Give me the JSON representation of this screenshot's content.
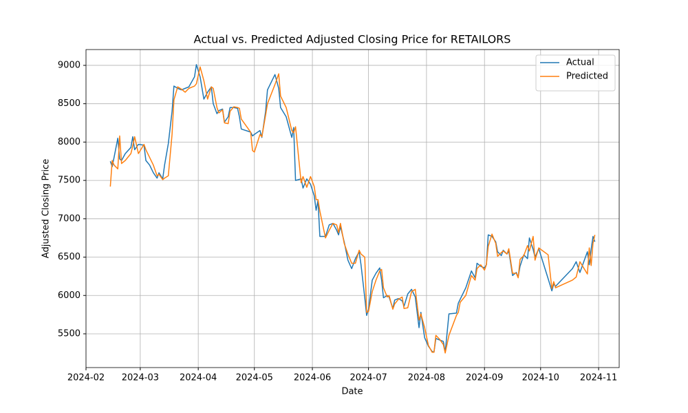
{
  "chart_data": {
    "type": "line",
    "title": "Actual vs. Predicted Adjusted Closing Price for RETAILORS",
    "x_label": "Date",
    "y_label": "Adjusted Closing Price",
    "x": [
      "2024-02-14",
      "2024-02-15",
      "2024-02-16",
      "2024-02-18",
      "2024-02-19",
      "2024-02-20",
      "2024-02-22",
      "2024-02-25",
      "2024-02-26",
      "2024-02-27",
      "2024-02-29",
      "2024-03-03",
      "2024-03-04",
      "2024-03-06",
      "2024-03-08",
      "2024-03-10",
      "2024-03-11",
      "2024-03-13",
      "2024-03-14",
      "2024-03-16",
      "2024-03-18",
      "2024-03-19",
      "2024-03-21",
      "2024-03-23",
      "2024-03-25",
      "2024-03-27",
      "2024-03-30",
      "2024-03-31",
      "2024-04-02",
      "2024-04-04",
      "2024-04-06",
      "2024-04-08",
      "2024-04-09",
      "2024-04-11",
      "2024-04-12",
      "2024-04-14",
      "2024-04-15",
      "2024-04-17",
      "2024-04-18",
      "2024-04-20",
      "2024-04-22",
      "2024-04-23",
      "2024-04-24",
      "2024-04-29",
      "2024-04-30",
      "2024-05-01",
      "2024-05-04",
      "2024-05-05",
      "2024-05-07",
      "2024-05-08",
      "2024-05-12",
      "2024-05-14",
      "2024-05-15",
      "2024-05-18",
      "2024-05-21",
      "2024-05-22",
      "2024-05-23",
      "2024-05-26",
      "2024-05-27",
      "2024-05-29",
      "2024-05-31",
      "2024-06-02",
      "2024-06-03",
      "2024-06-04",
      "2024-06-05",
      "2024-06-08",
      "2024-06-10",
      "2024-06-12",
      "2024-06-14",
      "2024-06-15",
      "2024-06-16",
      "2024-06-18",
      "2024-06-20",
      "2024-06-22",
      "2024-06-24",
      "2024-06-26",
      "2024-06-27",
      "2024-06-29",
      "2024-06-30",
      "2024-07-01",
      "2024-07-03",
      "2024-07-05",
      "2024-07-07",
      "2024-07-08",
      "2024-07-09",
      "2024-07-11",
      "2024-07-12",
      "2024-07-14",
      "2024-07-15",
      "2024-07-17",
      "2024-07-19",
      "2024-07-20",
      "2024-07-22",
      "2024-07-24",
      "2024-07-26",
      "2024-07-28",
      "2024-07-29",
      "2024-07-31",
      "2024-08-02",
      "2024-08-04",
      "2024-08-05",
      "2024-08-06",
      "2024-08-08",
      "2024-08-10",
      "2024-08-11",
      "2024-08-13",
      "2024-08-17",
      "2024-08-18",
      "2024-08-19",
      "2024-08-22",
      "2024-08-25",
      "2024-08-27",
      "2024-08-28",
      "2024-08-30",
      "2024-09-01",
      "2024-09-02",
      "2024-09-03",
      "2024-09-05",
      "2024-09-07",
      "2024-09-08",
      "2024-09-10",
      "2024-09-11",
      "2024-09-13",
      "2024-09-14",
      "2024-09-16",
      "2024-09-18",
      "2024-09-19",
      "2024-09-20",
      "2024-09-22",
      "2024-09-24",
      "2024-09-25",
      "2024-09-27",
      "2024-09-28",
      "2024-09-30",
      "2024-10-05",
      "2024-10-07",
      "2024-10-08",
      "2024-10-09",
      "2024-10-18",
      "2024-10-20",
      "2024-10-22",
      "2024-10-26",
      "2024-10-27",
      "2024-10-28",
      "2024-10-29",
      "2024-10-30"
    ],
    "series": [
      {
        "name": "Actual",
        "color": "#1f77b4",
        "values": [
          7750,
          7680,
          7800,
          8050,
          7780,
          7760,
          7850,
          7930,
          8070,
          7900,
          7970,
          7960,
          7760,
          7700,
          7600,
          7530,
          7600,
          7520,
          7700,
          7980,
          8400,
          8730,
          8700,
          8680,
          8700,
          8720,
          8850,
          9010,
          8850,
          8560,
          8650,
          8720,
          8500,
          8370,
          8410,
          8430,
          8260,
          8330,
          8450,
          8450,
          8440,
          8330,
          8170,
          8130,
          8080,
          8100,
          8150,
          8060,
          8400,
          8680,
          8880,
          8700,
          8450,
          8330,
          8060,
          8190,
          7500,
          7520,
          7400,
          7520,
          7450,
          7300,
          7110,
          7240,
          6770,
          6770,
          6920,
          6940,
          6850,
          6790,
          6900,
          6700,
          6460,
          6350,
          6480,
          6570,
          6400,
          5970,
          5740,
          5820,
          6200,
          6290,
          6360,
          6200,
          5970,
          6000,
          5980,
          5830,
          5940,
          5960,
          5930,
          5860,
          6020,
          6080,
          5980,
          5580,
          5780,
          5450,
          5340,
          5270,
          5260,
          5440,
          5420,
          5400,
          5260,
          5760,
          5770,
          5900,
          5950,
          6100,
          6320,
          6230,
          6420,
          6380,
          6360,
          6400,
          6790,
          6770,
          6700,
          6570,
          6520,
          6590,
          6540,
          6580,
          6260,
          6300,
          6240,
          6380,
          6530,
          6480,
          6750,
          6600,
          6500,
          6610,
          6220,
          6060,
          6150,
          6120,
          6350,
          6440,
          6300,
          6570,
          6400,
          6600,
          6770,
          6700
        ]
      },
      {
        "name": "Predicted",
        "color": "#ff7f0e",
        "values": [
          7420,
          7760,
          7700,
          7650,
          8080,
          7720,
          7760,
          7850,
          7950,
          8070,
          7850,
          7970,
          7900,
          7800,
          7700,
          7560,
          7580,
          7510,
          7530,
          7560,
          8100,
          8550,
          8720,
          8690,
          8650,
          8700,
          8730,
          8760,
          8980,
          8800,
          8560,
          8720,
          8700,
          8450,
          8380,
          8420,
          8250,
          8240,
          8400,
          8460,
          8450,
          8440,
          8300,
          8130,
          7890,
          7870,
          8100,
          8070,
          8350,
          8500,
          8750,
          8890,
          8600,
          8450,
          8150,
          8120,
          8200,
          7470,
          7550,
          7410,
          7550,
          7420,
          7250,
          7250,
          7100,
          6750,
          6850,
          6940,
          6920,
          6820,
          6940,
          6680,
          6540,
          6420,
          6420,
          6590,
          6540,
          6500,
          5780,
          5790,
          6050,
          6200,
          6320,
          6340,
          6100,
          5980,
          6000,
          5820,
          5890,
          5950,
          5980,
          5830,
          5840,
          6050,
          6080,
          5680,
          5760,
          5580,
          5350,
          5260,
          5260,
          5480,
          5430,
          5360,
          5250,
          5480,
          5740,
          5780,
          5910,
          6000,
          6260,
          6200,
          6350,
          6400,
          6330,
          6400,
          6640,
          6800,
          6680,
          6510,
          6560,
          6580,
          6540,
          6610,
          6290,
          6290,
          6230,
          6470,
          6520,
          6650,
          6580,
          6770,
          6460,
          6620,
          6530,
          6090,
          6180,
          6100,
          6200,
          6240,
          6440,
          6280,
          6620,
          6390,
          6680,
          6790
        ]
      }
    ],
    "xlim": [
      "2024-02-01",
      "2024-11-12"
    ],
    "xticks": [
      "2024-02",
      "2024-03",
      "2024-04",
      "2024-05",
      "2024-06",
      "2024-07",
      "2024-08",
      "2024-09",
      "2024-10",
      "2024-11"
    ],
    "ylim": [
      5060,
      9206
    ],
    "yticks": [
      5500,
      6000,
      6500,
      7000,
      7500,
      8000,
      8500,
      9000
    ],
    "grid": true,
    "legend": "upper right"
  }
}
